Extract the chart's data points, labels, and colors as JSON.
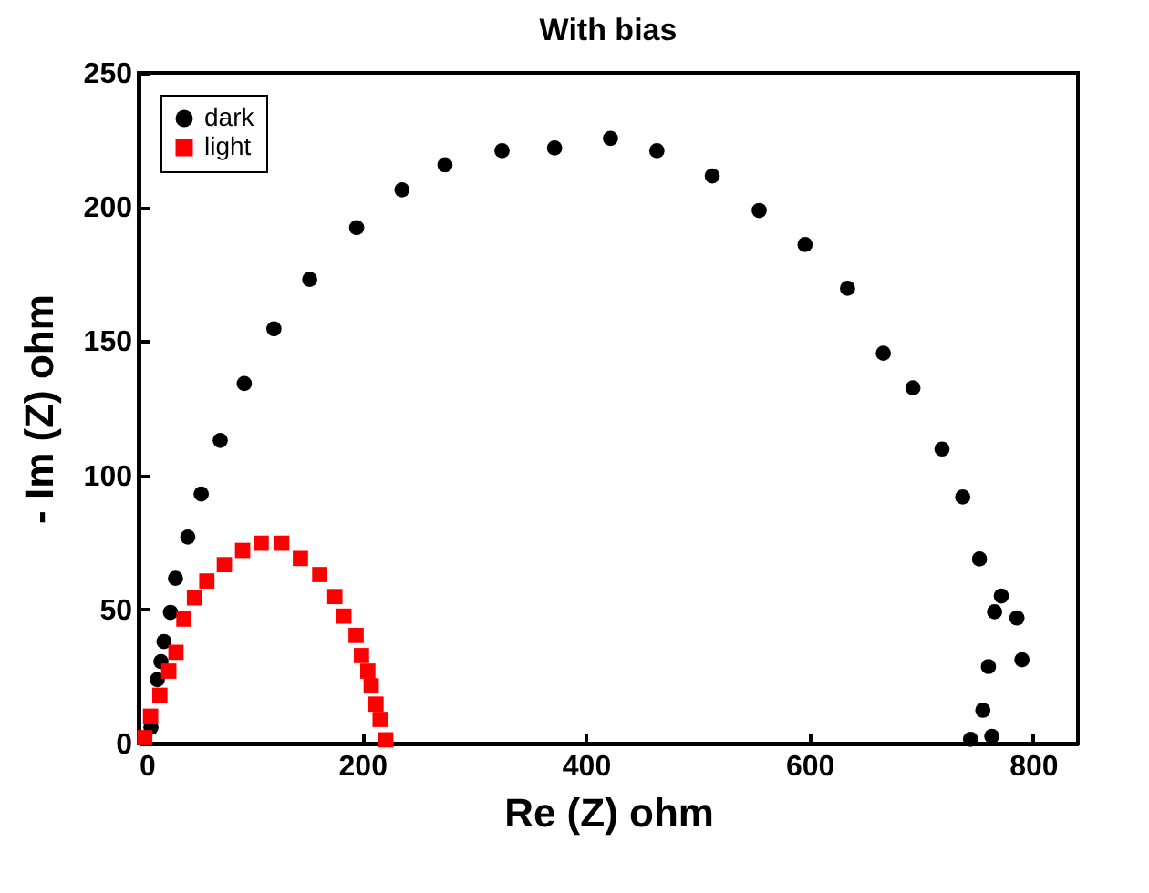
{
  "chart_data": {
    "type": "scatter",
    "title": "With bias",
    "xlabel": "Re (Z) ohm",
    "ylabel": "- Im (Z) ohm",
    "xlim": [
      0,
      840
    ],
    "ylim": [
      0,
      250
    ],
    "xticks": [
      0,
      200,
      400,
      600,
      800
    ],
    "yticks": [
      0,
      50,
      100,
      150,
      200,
      250
    ],
    "grid": false,
    "legend": "top left",
    "series": [
      {
        "name": "dark",
        "color": "#000000",
        "marker": "circle",
        "x": [
          11,
          16.7,
          20,
          22.7,
          28.5,
          33,
          44,
          56,
          73,
          94.5,
          121,
          153,
          195,
          235.5,
          274,
          325,
          372,
          422,
          463.5,
          513,
          555,
          596,
          634,
          666,
          692.5,
          718.5,
          737,
          752,
          771.5,
          765.5,
          785.5,
          790,
          760,
          755,
          763,
          744
        ],
        "values": [
          6,
          23.8,
          30.5,
          38,
          48.9,
          61.6,
          77,
          93,
          113,
          134.2,
          154.6,
          173,
          192.3,
          206.4,
          215.7,
          221,
          222,
          225.6,
          221,
          211.6,
          198.7,
          186,
          169.7,
          145.5,
          132.6,
          109.8,
          91.9,
          68.8,
          55,
          49.1,
          46.8,
          31.2,
          28.7,
          12.4,
          2.7,
          1.6
        ]
      },
      {
        "name": "light",
        "color": "#ff0000",
        "marker": "square",
        "x": [
          5.5,
          10.7,
          19,
          27,
          33.4,
          40.5,
          50,
          61,
          76.7,
          93,
          109.6,
          128,
          144.7,
          162,
          175.5,
          183.6,
          194.5,
          199.3,
          205,
          208,
          212.3,
          216,
          221
        ],
        "values": [
          2.2,
          10.2,
          18,
          27,
          34,
          46.4,
          54.3,
          60.6,
          66.7,
          72,
          74.7,
          74.7,
          69,
          63,
          54.8,
          47.5,
          40.3,
          32.8,
          27,
          21.5,
          14.7,
          9,
          1.4
        ]
      }
    ]
  }
}
